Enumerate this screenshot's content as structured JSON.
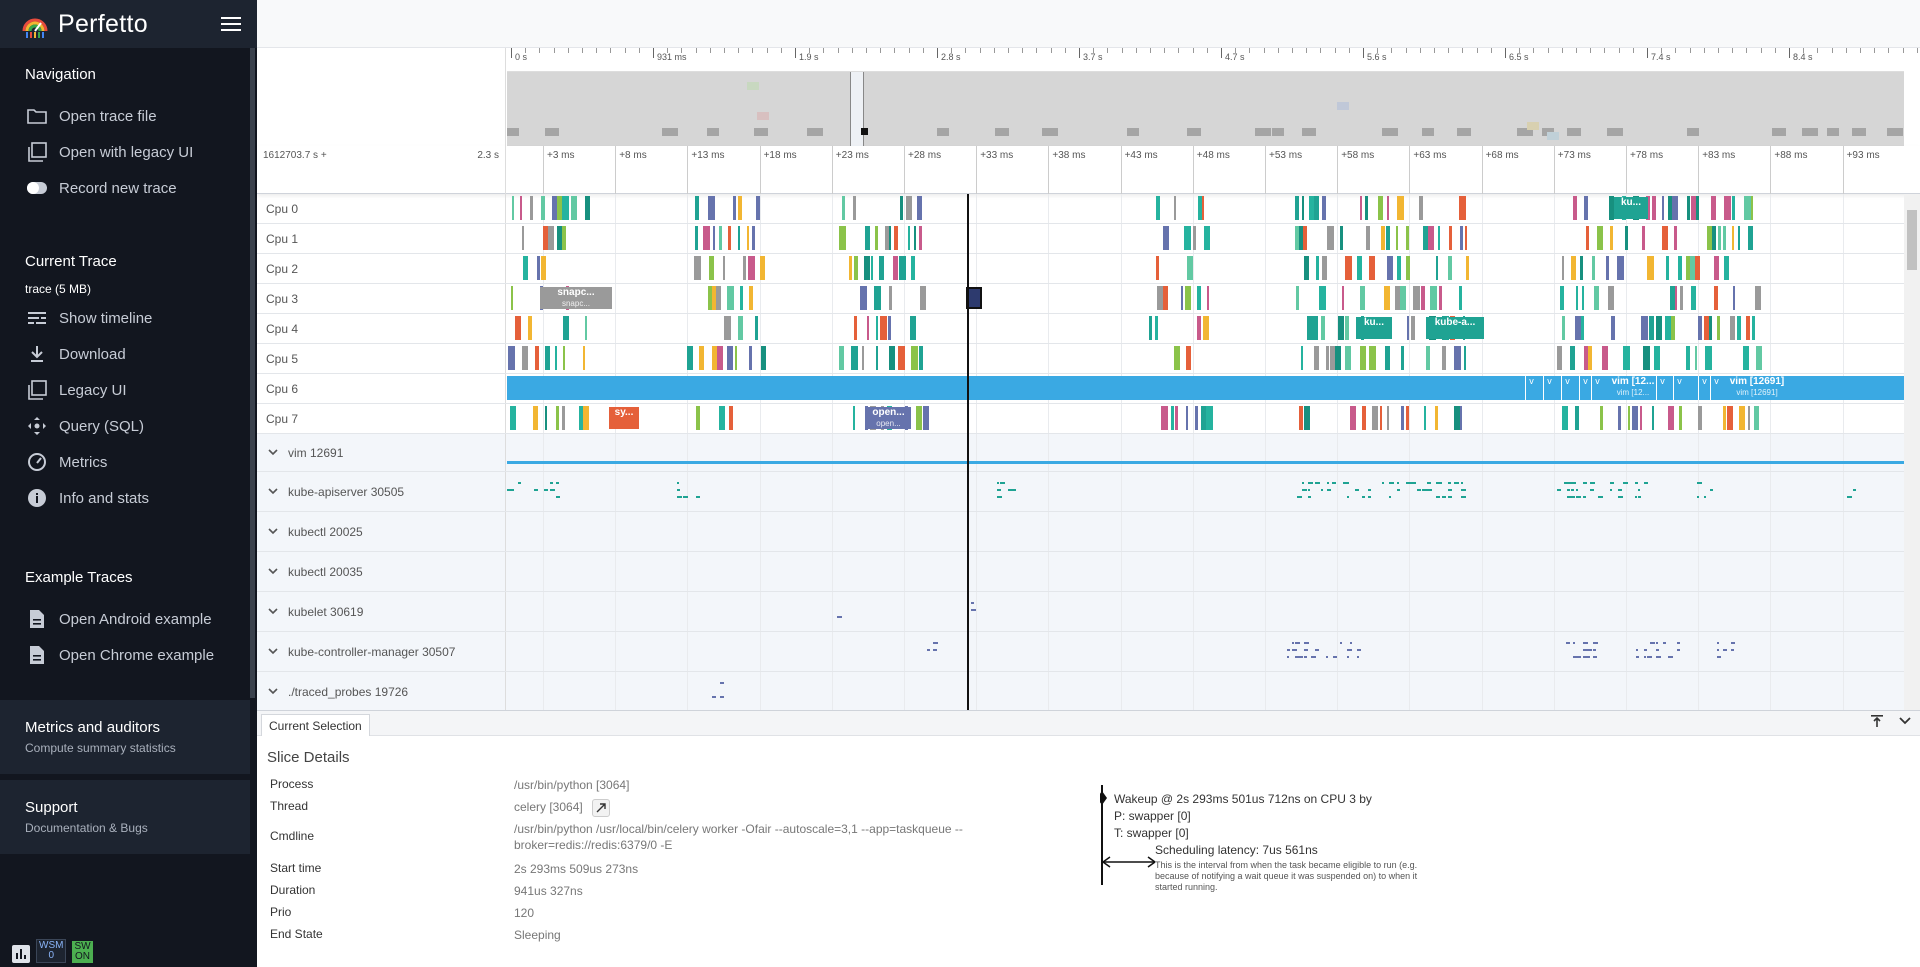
{
  "app": {
    "title": "Perfetto"
  },
  "sidebar": {
    "navigation": {
      "title": "Navigation",
      "items": [
        {
          "label": "Open trace file",
          "icon": "folder-icon"
        },
        {
          "label": "Open with legacy UI",
          "icon": "filter-none-icon"
        },
        {
          "label": "Record new trace",
          "icon": "toggle-icon"
        }
      ]
    },
    "current_trace": {
      "title": "Current Trace",
      "trace_name": "trace (5 MB)",
      "items": [
        {
          "label": "Show timeline",
          "icon": "timeline-icon"
        },
        {
          "label": "Download",
          "icon": "download-icon"
        },
        {
          "label": "Legacy UI",
          "icon": "filter-none-icon"
        },
        {
          "label": "Query (SQL)",
          "icon": "control-camera-icon"
        },
        {
          "label": "Metrics",
          "icon": "speed-icon"
        },
        {
          "label": "Info and stats",
          "icon": "info-icon"
        }
      ]
    },
    "examples": {
      "title": "Example Traces",
      "items": [
        {
          "label": "Open Android example",
          "icon": "description-icon"
        },
        {
          "label": "Open Chrome example",
          "icon": "description-icon"
        }
      ]
    },
    "metrics_block": {
      "title": "Metrics and auditors",
      "subtitle": "Compute summary statistics"
    },
    "support_block": {
      "title": "Support",
      "subtitle": "Documentation & Bugs"
    },
    "badges": {
      "wsm": "WSM",
      "wsm_sub": "0",
      "sw": "SW",
      "sw_sub": "ON"
    }
  },
  "overview": {
    "ticks": [
      "0 s",
      "931 ms",
      "1.9 s",
      "2.8 s",
      "3.7 s",
      "4.7 s",
      "5.6 s",
      "6.5 s",
      "7.4 s",
      "8.4 s"
    ]
  },
  "timestamp_ruler": {
    "base": "1612703.7 s +",
    "span": "2.3 s",
    "ticks": [
      "+3 ms",
      "+8 ms",
      "+13 ms",
      "+18 ms",
      "+23 ms",
      "+28 ms",
      "+33 ms",
      "+38 ms",
      "+43 ms",
      "+48 ms",
      "+53 ms",
      "+58 ms",
      "+63 ms",
      "+68 ms",
      "+73 ms",
      "+78 ms",
      "+83 ms",
      "+88 ms",
      "+93 ms"
    ]
  },
  "tracks": {
    "cpu": [
      "Cpu 0",
      "Cpu 1",
      "Cpu 2",
      "Cpu 3",
      "Cpu 4",
      "Cpu 5",
      "Cpu 6",
      "Cpu 7"
    ],
    "processes": [
      "vim 12691",
      "kube-apiserver 30505",
      "kubectl 20025",
      "kubectl 20035",
      "kubelet 30619",
      "kube-controller-manager 30507",
      "./traced_probes 19726"
    ],
    "slice_labels": {
      "snapc": "snapc...",
      "snapc_sub": "snapc...",
      "sy": "sy...",
      "open": "open...",
      "open_sub": "open...",
      "ku": "ku...",
      "kube_a": "kube-a...",
      "vim": "vim [12...",
      "vim_sub": "vim [12...",
      "vim_full": "vim [12691]",
      "vim_full_sub": "vim [12691]"
    }
  },
  "details": {
    "tab": "Current Selection",
    "title": "Slice Details",
    "rows": [
      {
        "key": "Process",
        "value": "/usr/bin/python [3064]"
      },
      {
        "key": "Thread",
        "value": "celery [3064]"
      },
      {
        "key": "Cmdline",
        "value": "/usr/bin/python /usr/local/bin/celery worker -Ofair --autoscale=3,1 --app=taskqueue --broker=redis://redis:6379/0 -E"
      },
      {
        "key": "Start time",
        "value": "2s 293ms 509us 273ns"
      },
      {
        "key": "Duration",
        "value": "941us 327ns"
      },
      {
        "key": "Prio",
        "value": "120"
      },
      {
        "key": "End State",
        "value": "Sleeping"
      }
    ],
    "wakeup": {
      "line1": "Wakeup @ 2s 293ms 501us 712ns on CPU 3 by",
      "line2": "P: swapper [0]",
      "line3": "T: swapper [0]",
      "latency": "Scheduling latency: 7us 561ns",
      "explain": "This is the interval from when the task became eligible to run (e.g. because of notifying a wait queue it was suspended on) to when it started running."
    }
  },
  "colors": {
    "sidebar_bg": "#12161f",
    "sidebar_header": "#1d2430",
    "teal": "#1fa393",
    "cpu6_blue": "#3aa9e3",
    "orange_red": "#e5603a",
    "slate": "#6673ad"
  }
}
